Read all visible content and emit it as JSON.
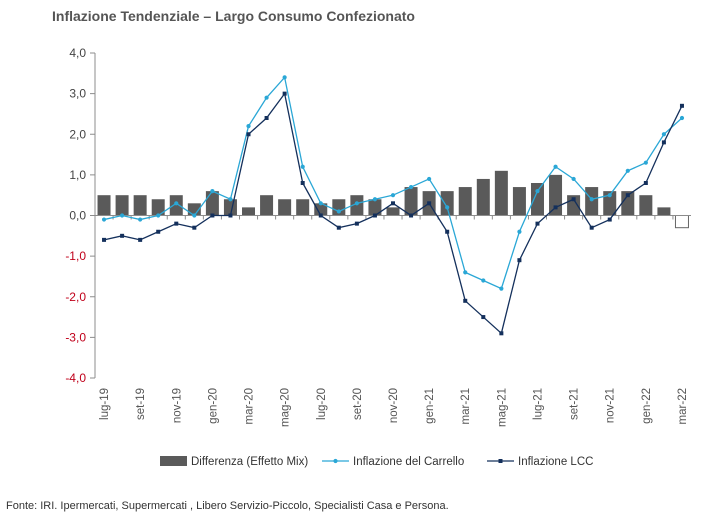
{
  "chart_data": {
    "type": "bar",
    "title": "Inflazione Tendenziale – Largo Consumo Confezionato",
    "source": "Fonte: IRI. Ipermercati, Supermercati , Libero Servizio-Piccolo, Specialisti Casa e Persona.",
    "xlabel": "",
    "ylabel": "",
    "ylim": [
      -4,
      4
    ],
    "y_ticks": [
      "4,0",
      "3,0",
      "2,0",
      "1,0",
      "0,0",
      "-1,0",
      "-2,0",
      "-3,0",
      "-4,0"
    ],
    "y_tick_values": [
      4,
      3,
      2,
      1,
      0,
      -1,
      -2,
      -3,
      -4
    ],
    "categories": [
      "lug-19",
      "ago-19",
      "set-19",
      "ott-19",
      "nov-19",
      "dic-19",
      "gen-20",
      "feb-20",
      "mar-20",
      "apr-20",
      "mag-20",
      "giu-20",
      "lug-20",
      "ago-20",
      "set-20",
      "ott-20",
      "nov-20",
      "dic-20",
      "gen-21",
      "feb-21",
      "mar-21",
      "apr-21",
      "mag-21",
      "giu-21",
      "lug-21",
      "ago-21",
      "set-21",
      "ott-21",
      "nov-21",
      "dic-21",
      "gen-22",
      "feb-22",
      "mar-22"
    ],
    "x_tick_labels": [
      "lug-19",
      "set-19",
      "nov-19",
      "gen-20",
      "mar-20",
      "mag-20",
      "lug-20",
      "set-20",
      "nov-20",
      "gen-21",
      "mar-21",
      "mag-21",
      "lug-21",
      "set-21",
      "nov-21",
      "gen-22",
      "mar-22"
    ],
    "grid": false,
    "legend_position": "bottom",
    "series": [
      {
        "name": "Differenza (Effetto Mix)",
        "kind": "bar",
        "color": "#5a5a5a",
        "values": [
          0.5,
          0.5,
          0.5,
          0.4,
          0.5,
          0.3,
          0.6,
          0.4,
          0.2,
          0.5,
          0.4,
          0.4,
          0.3,
          0.4,
          0.5,
          0.4,
          0.2,
          0.7,
          0.6,
          0.6,
          0.7,
          0.9,
          1.1,
          0.7,
          0.8,
          1.0,
          0.5,
          0.7,
          0.6,
          0.6,
          0.5,
          0.2,
          -0.3
        ]
      },
      {
        "name": "Inflazione del Carrello",
        "kind": "line",
        "color": "#2aa7d6",
        "marker": "circle",
        "values": [
          -0.1,
          0.0,
          -0.1,
          0.0,
          0.3,
          0.0,
          0.6,
          0.4,
          2.2,
          2.9,
          3.4,
          1.2,
          0.3,
          0.1,
          0.3,
          0.4,
          0.5,
          0.7,
          0.9,
          0.2,
          -1.4,
          -1.6,
          -1.8,
          -0.4,
          0.6,
          1.2,
          0.9,
          0.4,
          0.5,
          1.1,
          1.3,
          2.0,
          2.4
        ]
      },
      {
        "name": "Inflazione LCC",
        "kind": "line",
        "color": "#14305c",
        "marker": "square",
        "values": [
          -0.6,
          -0.5,
          -0.6,
          -0.4,
          -0.2,
          -0.3,
          0.0,
          0.0,
          2.0,
          2.4,
          3.0,
          0.8,
          0.0,
          -0.3,
          -0.2,
          0.0,
          0.3,
          0.0,
          0.3,
          -0.4,
          -2.1,
          -2.5,
          -2.9,
          -1.1,
          -0.2,
          0.2,
          0.4,
          -0.3,
          -0.1,
          0.5,
          0.8,
          1.8,
          2.7
        ]
      }
    ]
  }
}
